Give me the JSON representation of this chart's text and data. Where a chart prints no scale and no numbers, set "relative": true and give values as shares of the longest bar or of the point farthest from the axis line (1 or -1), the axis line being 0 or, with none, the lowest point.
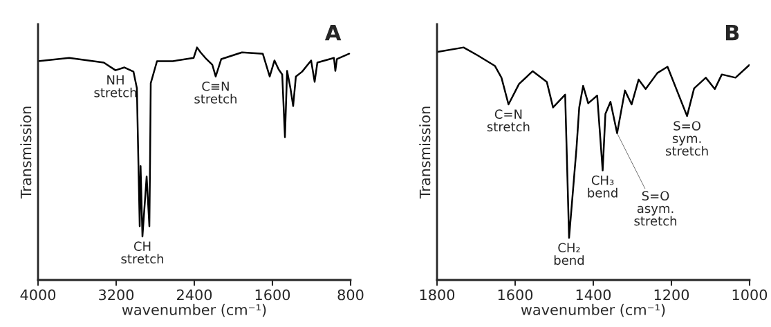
{
  "chart_data": [
    {
      "type": "line",
      "relative": true,
      "xlabel": "wavenumber (cm⁻¹)",
      "ylabel": "Transmission",
      "xlim": [
        4000,
        800
      ],
      "xticks": [
        4000,
        3200,
        2400,
        1600,
        800
      ],
      "tick_labels": "x",
      "grid": false,
      "legend": false,
      "series": [
        {
          "color": "#000000",
          "x": [
            4000,
            3681,
            3327,
            3207,
            3115,
            3023,
            2988,
            2959,
            2950,
            2931,
            2888,
            2860,
            2853,
            2846,
            2782,
            2620,
            2407,
            2372,
            2336,
            2287,
            2216,
            2181,
            2124,
            1912,
            1699,
            1628,
            1579,
            1536,
            1500,
            1472,
            1450,
            1416,
            1388,
            1360,
            1296,
            1204,
            1168,
            1140,
            970,
            956,
            940,
            814
          ],
          "values": [
            0.941,
            0.955,
            0.935,
            0.902,
            0.914,
            0.896,
            0.825,
            0.231,
            0.49,
            0.187,
            0.445,
            0.231,
            0.51,
            0.846,
            0.941,
            0.941,
            0.955,
            1.0,
            0.979,
            0.955,
            0.926,
            0.875,
            0.95,
            0.979,
            0.973,
            0.875,
            0.944,
            0.905,
            0.884,
            0.614,
            0.899,
            0.825,
            0.748,
            0.875,
            0.896,
            0.944,
            0.852,
            0.935,
            0.955,
            0.899,
            0.95,
            0.973
          ]
        }
      ],
      "annotations": [
        {
          "text": "NH\nstretch",
          "x": 3207,
          "y": 0.902
        },
        {
          "text": "CH\nstretch",
          "x": 2931,
          "y": 0.187
        },
        {
          "text": "C≡N\nstretch",
          "x": 2181,
          "y": 0.875
        },
        "A"
      ]
    },
    {
      "type": "line",
      "relative": true,
      "xlabel": "wavenumber (cm⁻¹)",
      "ylabel": "Transmission",
      "xlim": [
        1800,
        1000
      ],
      "xticks": [
        1800,
        1600,
        1400,
        1200,
        1000
      ],
      "tick_labels": "x",
      "grid": false,
      "legend": false,
      "series": [
        {
          "color": "#000000",
          "x": [
            1798,
            1732,
            1697,
            1652,
            1635,
            1617,
            1590,
            1555,
            1519,
            1503,
            1472,
            1462,
            1443,
            1436,
            1426,
            1413,
            1390,
            1376,
            1369,
            1356,
            1339,
            1319,
            1302,
            1284,
            1266,
            1236,
            1210,
            1160,
            1142,
            1112,
            1089,
            1071,
            1036,
            1001
          ],
          "values": [
            0.981,
            1.0,
            0.967,
            0.921,
            0.87,
            0.755,
            0.843,
            0.898,
            0.852,
            0.742,
            0.797,
            0.181,
            0.567,
            0.742,
            0.835,
            0.76,
            0.793,
            0.471,
            0.714,
            0.766,
            0.631,
            0.815,
            0.755,
            0.862,
            0.821,
            0.89,
            0.917,
            0.705,
            0.824,
            0.87,
            0.821,
            0.884,
            0.87,
            0.924
          ]
        }
      ],
      "annotations": [
        {
          "text": "C=N\nstretch",
          "x": 1617,
          "y": 0.755
        },
        {
          "text": "CH₂\nbend",
          "x": 1462,
          "y": 0.181
        },
        {
          "text": "CH₃\nbend",
          "x": 1376,
          "y": 0.471
        },
        {
          "text": "S=O\nasym.\nstretch",
          "x": 1339,
          "y": 0.631
        },
        {
          "text": "S=O\nsym.\nstretch",
          "x": 1160,
          "y": 0.705
        },
        "B"
      ]
    }
  ]
}
